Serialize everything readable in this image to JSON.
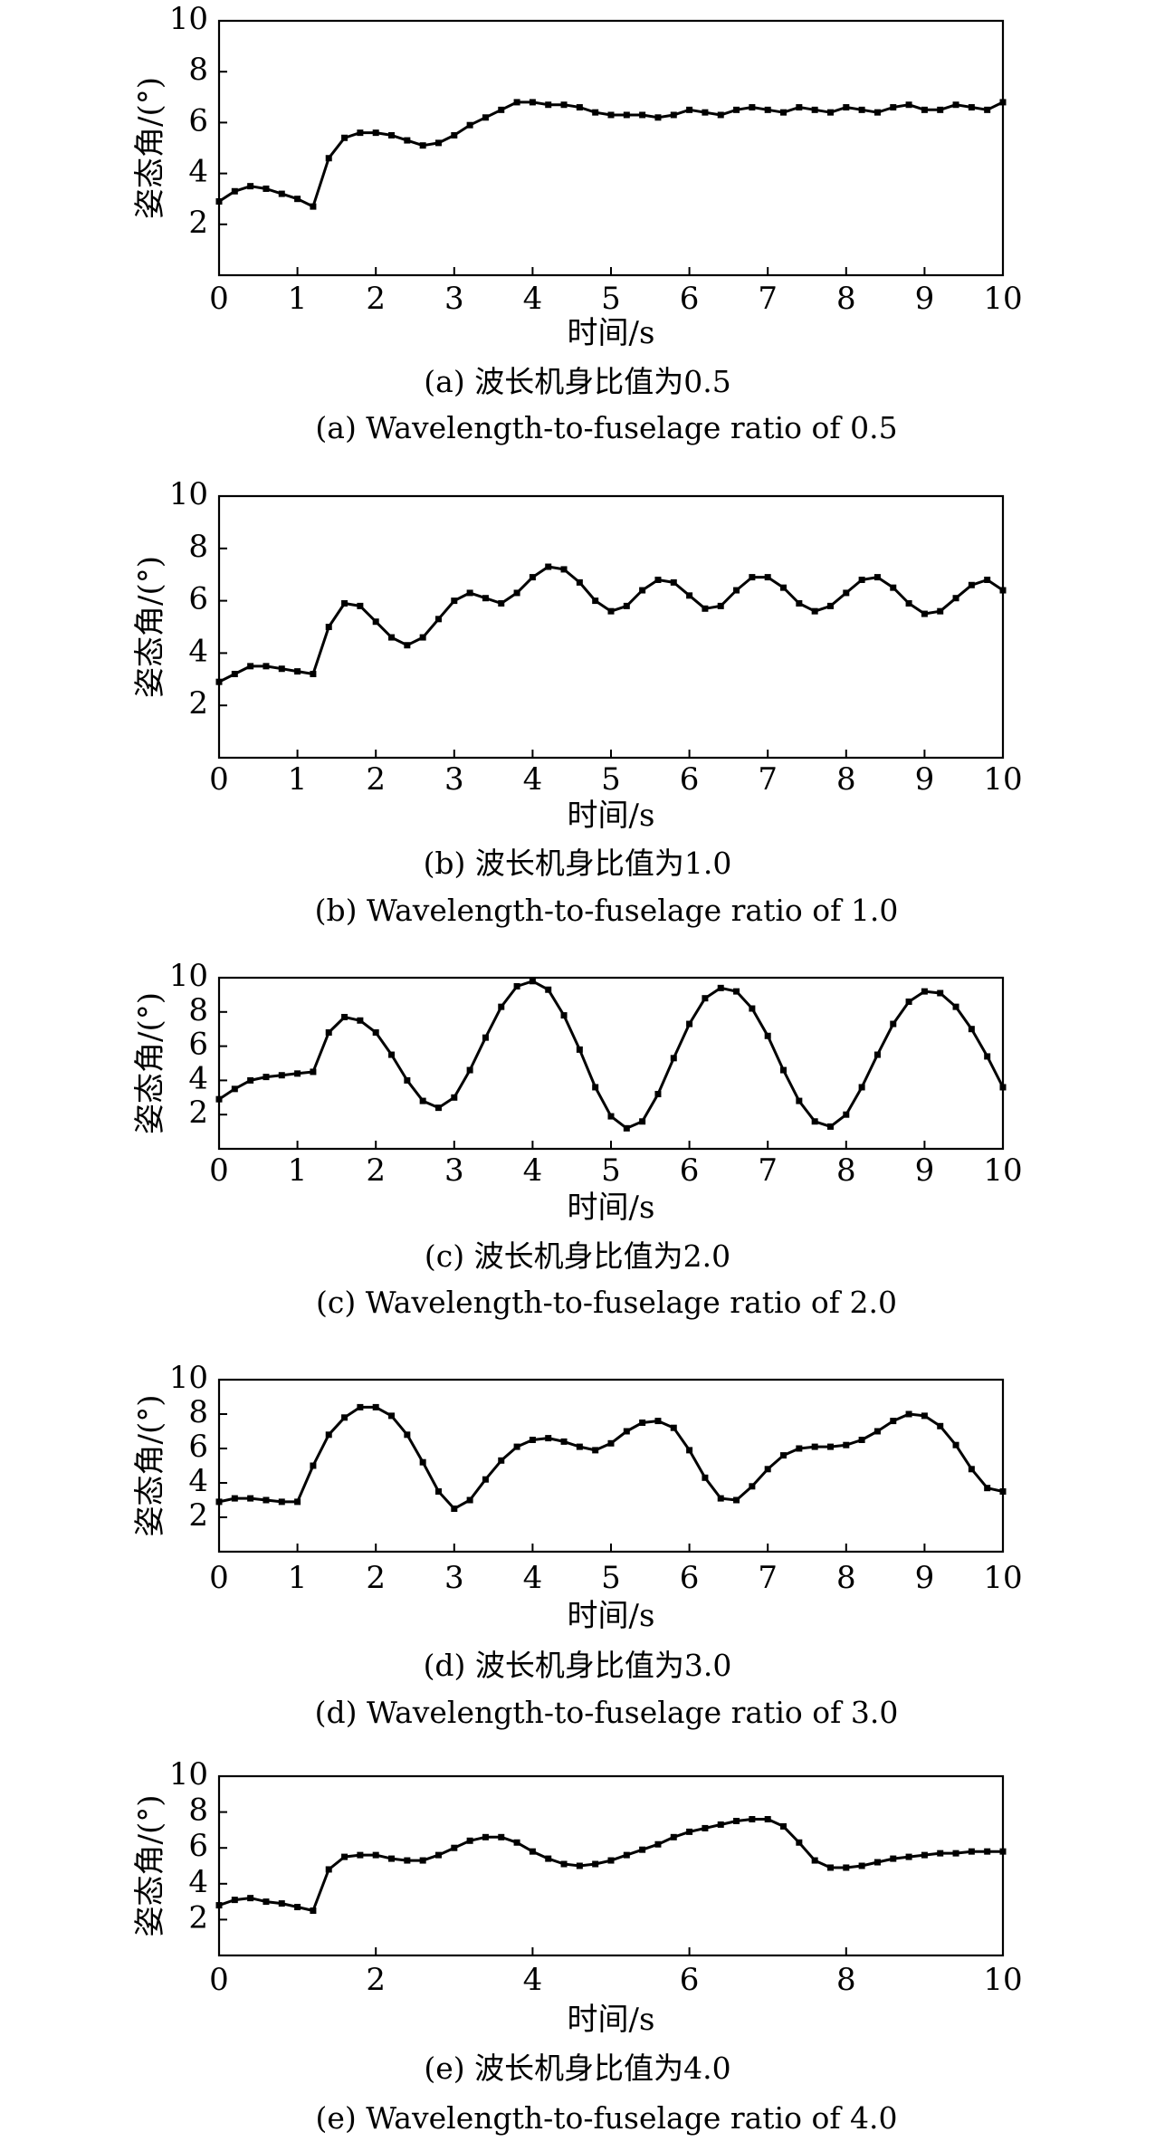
{
  "chart_data": [
    {
      "type": "line",
      "xlabel": "时间/s",
      "ylabel": "姿态角/(°)",
      "xlim": [
        0,
        10
      ],
      "ylim": [
        0,
        10
      ],
      "xticks": [
        0,
        1,
        2,
        3,
        4,
        5,
        6,
        7,
        8,
        9,
        10
      ],
      "yticks": [
        2,
        4,
        6,
        8,
        10
      ],
      "caption_cn": "(a) 波长机身比值为0.5",
      "caption_en": "(a) Wavelength-to-fuselage ratio of 0.5",
      "x": [
        0.0,
        0.2,
        0.4,
        0.6,
        0.8,
        1.0,
        1.2,
        1.4,
        1.6,
        1.8,
        2.0,
        2.2,
        2.4,
        2.6,
        2.8,
        3.0,
        3.2,
        3.4,
        3.6,
        3.8,
        4.0,
        4.2,
        4.4,
        4.6,
        4.8,
        5.0,
        5.2,
        5.4,
        5.6,
        5.8,
        6.0,
        6.2,
        6.4,
        6.6,
        6.8,
        7.0,
        7.2,
        7.4,
        7.6,
        7.8,
        8.0,
        8.2,
        8.4,
        8.6,
        8.8,
        9.0,
        9.2,
        9.4,
        9.6,
        9.8,
        10.0
      ],
      "y": [
        2.9,
        3.3,
        3.5,
        3.4,
        3.2,
        3.0,
        2.7,
        4.6,
        5.4,
        5.6,
        5.6,
        5.5,
        5.3,
        5.1,
        5.2,
        5.5,
        5.9,
        6.2,
        6.5,
        6.8,
        6.8,
        6.7,
        6.7,
        6.6,
        6.4,
        6.3,
        6.3,
        6.3,
        6.2,
        6.3,
        6.5,
        6.4,
        6.3,
        6.5,
        6.6,
        6.5,
        6.4,
        6.6,
        6.5,
        6.4,
        6.6,
        6.5,
        6.4,
        6.6,
        6.7,
        6.5,
        6.5,
        6.7,
        6.6,
        6.5,
        6.8
      ]
    },
    {
      "type": "line",
      "xlabel": "时间/s",
      "ylabel": "姿态角/(°)",
      "xlim": [
        0,
        10
      ],
      "ylim": [
        0,
        10
      ],
      "xticks": [
        0,
        1,
        2,
        3,
        4,
        5,
        6,
        7,
        8,
        9,
        10
      ],
      "yticks": [
        2,
        4,
        6,
        8,
        10
      ],
      "caption_cn": "(b) 波长机身比值为1.0",
      "caption_en": "(b) Wavelength-to-fuselage ratio of 1.0",
      "x": [
        0.0,
        0.2,
        0.4,
        0.6,
        0.8,
        1.0,
        1.2,
        1.4,
        1.6,
        1.8,
        2.0,
        2.2,
        2.4,
        2.6,
        2.8,
        3.0,
        3.2,
        3.4,
        3.6,
        3.8,
        4.0,
        4.2,
        4.4,
        4.6,
        4.8,
        5.0,
        5.2,
        5.4,
        5.6,
        5.8,
        6.0,
        6.2,
        6.4,
        6.6,
        6.8,
        7.0,
        7.2,
        7.4,
        7.6,
        7.8,
        8.0,
        8.2,
        8.4,
        8.6,
        8.8,
        9.0,
        9.2,
        9.4,
        9.6,
        9.8,
        10.0
      ],
      "y": [
        2.9,
        3.2,
        3.5,
        3.5,
        3.4,
        3.3,
        3.2,
        5.0,
        5.9,
        5.8,
        5.2,
        4.6,
        4.3,
        4.6,
        5.3,
        6.0,
        6.3,
        6.1,
        5.9,
        6.3,
        6.9,
        7.3,
        7.2,
        6.7,
        6.0,
        5.6,
        5.8,
        6.4,
        6.8,
        6.7,
        6.2,
        5.7,
        5.8,
        6.4,
        6.9,
        6.9,
        6.5,
        5.9,
        5.6,
        5.8,
        6.3,
        6.8,
        6.9,
        6.5,
        5.9,
        5.5,
        5.6,
        6.1,
        6.6,
        6.8,
        6.4
      ]
    },
    {
      "type": "line",
      "xlabel": "时间/s",
      "ylabel": "姿态角/(°)",
      "xlim": [
        0,
        10
      ],
      "ylim": [
        0,
        10
      ],
      "xticks": [
        0,
        1,
        2,
        3,
        4,
        5,
        6,
        7,
        8,
        9,
        10
      ],
      "yticks": [
        2,
        4,
        6,
        8,
        10
      ],
      "caption_cn": "(c) 波长机身比值为2.0",
      "caption_en": "(c) Wavelength-to-fuselage ratio of 2.0",
      "x": [
        0.0,
        0.2,
        0.4,
        0.6,
        0.8,
        1.0,
        1.2,
        1.4,
        1.6,
        1.8,
        2.0,
        2.2,
        2.4,
        2.6,
        2.8,
        3.0,
        3.2,
        3.4,
        3.6,
        3.8,
        4.0,
        4.2,
        4.4,
        4.6,
        4.8,
        5.0,
        5.2,
        5.4,
        5.6,
        5.8,
        6.0,
        6.2,
        6.4,
        6.6,
        6.8,
        7.0,
        7.2,
        7.4,
        7.6,
        7.8,
        8.0,
        8.2,
        8.4,
        8.6,
        8.8,
        9.0,
        9.2,
        9.4,
        9.6,
        9.8,
        10.0
      ],
      "y": [
        2.9,
        3.5,
        4.0,
        4.2,
        4.3,
        4.4,
        4.5,
        6.8,
        7.7,
        7.5,
        6.8,
        5.5,
        4.0,
        2.8,
        2.4,
        3.0,
        4.6,
        6.5,
        8.3,
        9.5,
        9.8,
        9.3,
        7.8,
        5.8,
        3.6,
        1.9,
        1.2,
        1.6,
        3.2,
        5.3,
        7.3,
        8.8,
        9.4,
        9.2,
        8.2,
        6.6,
        4.6,
        2.8,
        1.6,
        1.3,
        2.0,
        3.6,
        5.5,
        7.3,
        8.6,
        9.2,
        9.1,
        8.3,
        7.0,
        5.4,
        3.6
      ]
    },
    {
      "type": "line",
      "xlabel": "时间/s",
      "ylabel": "姿态角/(°)",
      "xlim": [
        0,
        10
      ],
      "ylim": [
        0,
        10
      ],
      "xticks": [
        0,
        1,
        2,
        3,
        4,
        5,
        6,
        7,
        8,
        9,
        10
      ],
      "yticks": [
        2,
        4,
        6,
        8,
        10
      ],
      "caption_cn": "(d) 波长机身比值为3.0",
      "caption_en": "(d) Wavelength-to-fuselage ratio of 3.0",
      "x": [
        0.0,
        0.2,
        0.4,
        0.6,
        0.8,
        1.0,
        1.2,
        1.4,
        1.6,
        1.8,
        2.0,
        2.2,
        2.4,
        2.6,
        2.8,
        3.0,
        3.2,
        3.4,
        3.6,
        3.8,
        4.0,
        4.2,
        4.4,
        4.6,
        4.8,
        5.0,
        5.2,
        5.4,
        5.6,
        5.8,
        6.0,
        6.2,
        6.4,
        6.6,
        6.8,
        7.0,
        7.2,
        7.4,
        7.6,
        7.8,
        8.0,
        8.2,
        8.4,
        8.6,
        8.8,
        9.0,
        9.2,
        9.4,
        9.6,
        9.8,
        10.0
      ],
      "y": [
        2.9,
        3.1,
        3.1,
        3.0,
        2.9,
        2.9,
        5.0,
        6.8,
        7.8,
        8.4,
        8.4,
        7.9,
        6.8,
        5.2,
        3.5,
        2.5,
        3.0,
        4.2,
        5.3,
        6.1,
        6.5,
        6.6,
        6.4,
        6.1,
        5.9,
        6.3,
        7.0,
        7.5,
        7.6,
        7.2,
        5.9,
        4.3,
        3.1,
        3.0,
        3.8,
        4.8,
        5.6,
        6.0,
        6.1,
        6.1,
        6.2,
        6.5,
        7.0,
        7.6,
        8.0,
        7.9,
        7.3,
        6.2,
        4.8,
        3.7,
        3.5
      ]
    },
    {
      "type": "line",
      "xlabel": "时间/s",
      "ylabel": "姿态角/(°)",
      "xlim": [
        0,
        10
      ],
      "ylim": [
        0,
        10
      ],
      "xticks": [
        0,
        2,
        4,
        6,
        8,
        10
      ],
      "yticks": [
        2,
        4,
        6,
        8,
        10
      ],
      "caption_cn": "(e) 波长机身比值为4.0",
      "caption_en": "(e) Wavelength-to-fuselage ratio of 4.0",
      "x": [
        0.0,
        0.2,
        0.4,
        0.6,
        0.8,
        1.0,
        1.2,
        1.4,
        1.6,
        1.8,
        2.0,
        2.2,
        2.4,
        2.6,
        2.8,
        3.0,
        3.2,
        3.4,
        3.6,
        3.8,
        4.0,
        4.2,
        4.4,
        4.6,
        4.8,
        5.0,
        5.2,
        5.4,
        5.6,
        5.8,
        6.0,
        6.2,
        6.4,
        6.6,
        6.8,
        7.0,
        7.2,
        7.4,
        7.6,
        7.8,
        8.0,
        8.2,
        8.4,
        8.6,
        8.8,
        9.0,
        9.2,
        9.4,
        9.6,
        9.8,
        10.0
      ],
      "y": [
        2.8,
        3.1,
        3.2,
        3.0,
        2.9,
        2.7,
        2.5,
        4.8,
        5.5,
        5.6,
        5.6,
        5.4,
        5.3,
        5.3,
        5.6,
        6.0,
        6.4,
        6.6,
        6.6,
        6.3,
        5.8,
        5.4,
        5.1,
        5.0,
        5.1,
        5.3,
        5.6,
        5.9,
        6.2,
        6.6,
        6.9,
        7.1,
        7.3,
        7.5,
        7.6,
        7.6,
        7.2,
        6.3,
        5.3,
        4.9,
        4.9,
        5.0,
        5.2,
        5.4,
        5.5,
        5.6,
        5.7,
        5.7,
        5.8,
        5.8,
        5.8
      ]
    }
  ]
}
